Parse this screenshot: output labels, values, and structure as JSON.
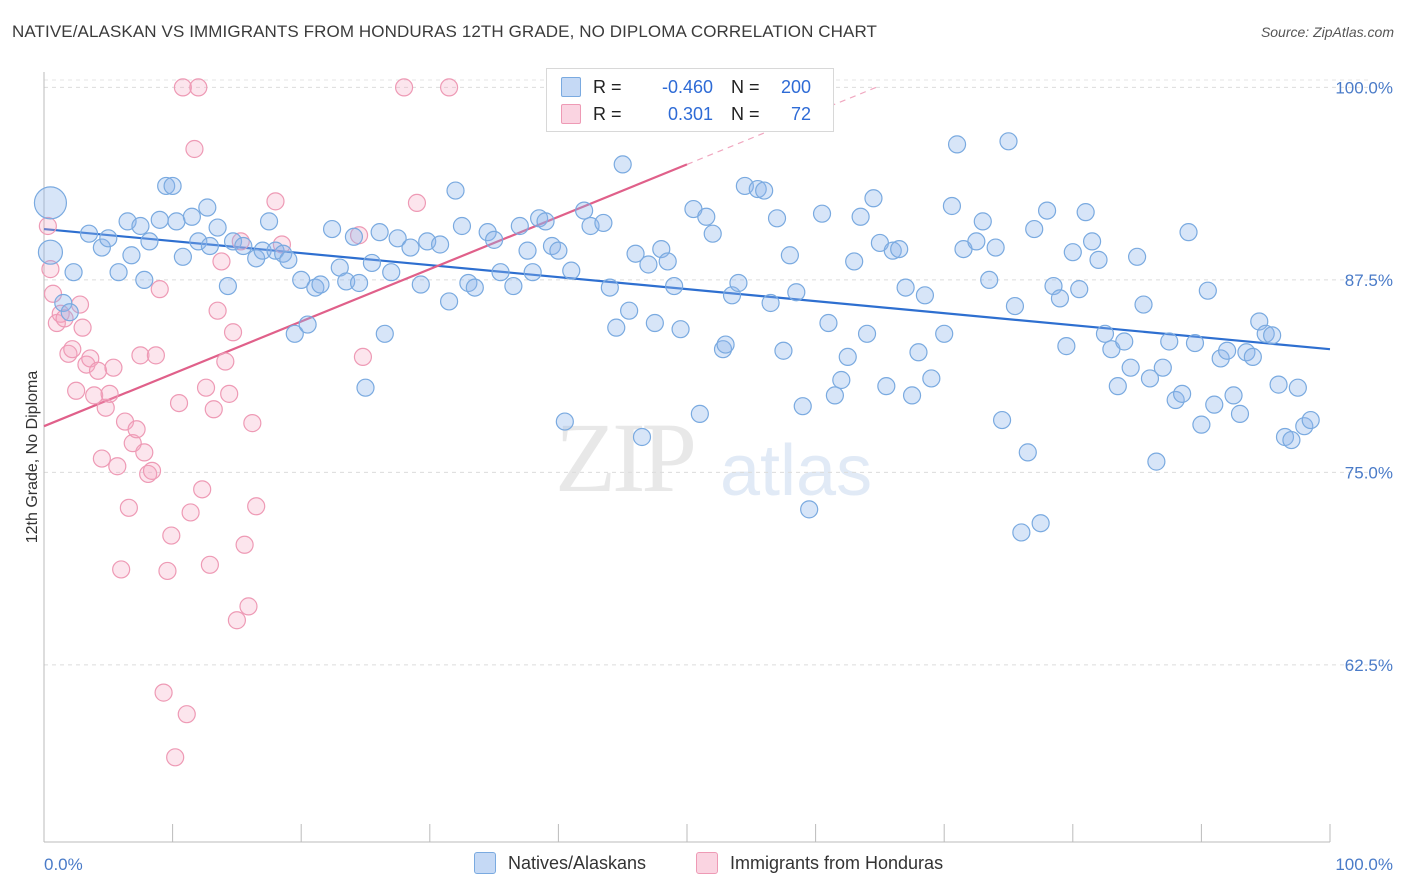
{
  "header": {
    "title": "NATIVE/ALASKAN VS IMMIGRANTS FROM HONDURAS 12TH GRADE, NO DIPLOMA CORRELATION CHART",
    "source": "Source: ZipAtlas.com"
  },
  "watermark": {
    "zip": "ZIP",
    "atlas": "atlas"
  },
  "legend": {
    "rows": [
      {
        "r_label": "R =",
        "r_value": "-0.460",
        "n_label": "N =",
        "n_value": "200"
      },
      {
        "r_label": "R =",
        "r_value": "0.301",
        "n_label": "N =",
        "n_value": "72"
      }
    ]
  },
  "colors": {
    "blue": "#7aaae0",
    "blue_fill": "rgba(140,180,235,0.35)",
    "blue_line": "#2e6fd0",
    "pink": "#ee9ab5",
    "pink_fill": "rgba(245,170,195,0.30)",
    "pink_line": "#e0608a"
  },
  "chart_data": {
    "type": "scatter",
    "title": "NATIVE/ALASKAN VS IMMIGRANTS FROM HONDURAS 12TH GRADE, NO DIPLOMA CORRELATION CHART",
    "xlabel": "",
    "ylabel": "12th Grade, No Diploma",
    "xlim": [
      0,
      100
    ],
    "ylim": [
      51,
      101
    ],
    "x_tick_labels": [
      "0.0%",
      "100.0%"
    ],
    "y_ticks": [
      62.5,
      75.0,
      87.5,
      100.0
    ],
    "y_tick_labels": [
      "62.5%",
      "75.0%",
      "87.5%",
      "100.0%"
    ],
    "grid": true,
    "legend_position": "bottom",
    "series": [
      {
        "name": "Natives/Alaskans",
        "trend": {
          "x": [
            0,
            100
          ],
          "y": [
            90.8,
            83.0
          ]
        },
        "points": [
          [
            0.5,
            92.5
          ],
          [
            0.5,
            89.3
          ],
          [
            1.5,
            86.0
          ],
          [
            2.0,
            85.4
          ],
          [
            2.3,
            88.0
          ],
          [
            3.5,
            90.5
          ],
          [
            4.5,
            89.6
          ],
          [
            5.0,
            90.2
          ],
          [
            5.8,
            88.0
          ],
          [
            6.5,
            91.3
          ],
          [
            6.8,
            89.1
          ],
          [
            7.5,
            91.0
          ],
          [
            7.8,
            87.5
          ],
          [
            8.2,
            90.0
          ],
          [
            9.0,
            91.4
          ],
          [
            9.5,
            93.6
          ],
          [
            10.0,
            93.6
          ],
          [
            10.3,
            91.3
          ],
          [
            10.8,
            89.0
          ],
          [
            11.5,
            91.6
          ],
          [
            12.0,
            90.0
          ],
          [
            12.7,
            92.2
          ],
          [
            12.9,
            89.7
          ],
          [
            13.5,
            90.9
          ],
          [
            14.3,
            87.1
          ],
          [
            14.7,
            90.0
          ],
          [
            15.5,
            89.7
          ],
          [
            16.5,
            88.9
          ],
          [
            17.0,
            89.4
          ],
          [
            17.5,
            91.3
          ],
          [
            18.0,
            89.4
          ],
          [
            18.6,
            89.2
          ],
          [
            19.0,
            88.8
          ],
          [
            19.5,
            84.0
          ],
          [
            20.0,
            87.5
          ],
          [
            20.5,
            84.6
          ],
          [
            21.1,
            87.0
          ],
          [
            21.5,
            87.2
          ],
          [
            22.4,
            90.8
          ],
          [
            23.0,
            88.3
          ],
          [
            23.5,
            87.4
          ],
          [
            24.1,
            90.3
          ],
          [
            24.5,
            87.3
          ],
          [
            25.0,
            80.5
          ],
          [
            25.5,
            88.6
          ],
          [
            26.1,
            90.6
          ],
          [
            26.5,
            84.0
          ],
          [
            27.0,
            88.0
          ],
          [
            27.5,
            90.2
          ],
          [
            28.5,
            89.6
          ],
          [
            29.3,
            87.2
          ],
          [
            29.8,
            90.0
          ],
          [
            30.8,
            89.8
          ],
          [
            31.5,
            86.1
          ],
          [
            32.0,
            93.3
          ],
          [
            32.5,
            91.0
          ],
          [
            33.0,
            87.3
          ],
          [
            33.5,
            87.0
          ],
          [
            34.5,
            90.6
          ],
          [
            35.0,
            90.1
          ],
          [
            35.5,
            88.0
          ],
          [
            36.5,
            87.1
          ],
          [
            37.0,
            91.0
          ],
          [
            37.6,
            89.4
          ],
          [
            38.0,
            88.0
          ],
          [
            38.5,
            91.5
          ],
          [
            39.0,
            91.3
          ],
          [
            39.5,
            89.7
          ],
          [
            40.0,
            89.4
          ],
          [
            40.5,
            78.3
          ],
          [
            41.0,
            88.1
          ],
          [
            42.0,
            92.0
          ],
          [
            42.5,
            91.0
          ],
          [
            43.5,
            91.2
          ],
          [
            44.0,
            87.0
          ],
          [
            44.5,
            84.4
          ],
          [
            45.0,
            95.0
          ],
          [
            45.5,
            85.5
          ],
          [
            46.0,
            89.2
          ],
          [
            46.5,
            77.3
          ],
          [
            47.0,
            88.5
          ],
          [
            47.5,
            84.7
          ],
          [
            48.0,
            89.5
          ],
          [
            48.5,
            88.7
          ],
          [
            49.0,
            87.1
          ],
          [
            49.5,
            84.3
          ],
          [
            50.5,
            92.1
          ],
          [
            51.0,
            78.8
          ],
          [
            51.5,
            91.6
          ],
          [
            52.0,
            90.5
          ],
          [
            52.8,
            83.0
          ],
          [
            53.0,
            83.3
          ],
          [
            53.5,
            86.5
          ],
          [
            54.0,
            87.3
          ],
          [
            54.5,
            93.6
          ],
          [
            55.5,
            93.4
          ],
          [
            56.0,
            93.3
          ],
          [
            56.5,
            86.0
          ],
          [
            57.0,
            91.5
          ],
          [
            57.5,
            82.9
          ],
          [
            58.0,
            89.1
          ],
          [
            58.5,
            86.7
          ],
          [
            59.0,
            79.3
          ],
          [
            59.5,
            72.6
          ],
          [
            60.0,
            99.0
          ],
          [
            60.5,
            91.8
          ],
          [
            61.0,
            84.7
          ],
          [
            61.5,
            80.0
          ],
          [
            62.0,
            81.0
          ],
          [
            62.5,
            82.5
          ],
          [
            63.0,
            88.7
          ],
          [
            63.5,
            91.6
          ],
          [
            64.0,
            84.0
          ],
          [
            64.5,
            92.8
          ],
          [
            65.0,
            89.9
          ],
          [
            65.5,
            80.6
          ],
          [
            66.0,
            89.4
          ],
          [
            66.5,
            89.5
          ],
          [
            67.0,
            87.0
          ],
          [
            67.5,
            80.0
          ],
          [
            68.0,
            82.8
          ],
          [
            68.5,
            86.5
          ],
          [
            69.0,
            81.1
          ],
          [
            70.0,
            84.0
          ],
          [
            70.6,
            92.3
          ],
          [
            71.0,
            96.3
          ],
          [
            71.5,
            89.5
          ],
          [
            72.5,
            90.0
          ],
          [
            73.0,
            91.3
          ],
          [
            73.5,
            87.5
          ],
          [
            74.0,
            89.6
          ],
          [
            74.5,
            78.4
          ],
          [
            75.0,
            96.5
          ],
          [
            75.5,
            85.8
          ],
          [
            76.0,
            71.1
          ],
          [
            76.5,
            76.3
          ],
          [
            77.0,
            90.8
          ],
          [
            77.5,
            71.7
          ],
          [
            78.0,
            92.0
          ],
          [
            78.5,
            87.1
          ],
          [
            79.0,
            86.3
          ],
          [
            79.5,
            83.2
          ],
          [
            80.0,
            89.3
          ],
          [
            80.5,
            86.9
          ],
          [
            81.0,
            91.9
          ],
          [
            81.5,
            90.0
          ],
          [
            82.0,
            88.8
          ],
          [
            82.5,
            84.0
          ],
          [
            83.0,
            83.0
          ],
          [
            83.5,
            80.6
          ],
          [
            84.0,
            83.5
          ],
          [
            84.5,
            81.8
          ],
          [
            85.0,
            89.0
          ],
          [
            85.5,
            85.9
          ],
          [
            86.0,
            81.1
          ],
          [
            86.5,
            75.7
          ],
          [
            87.0,
            81.8
          ],
          [
            87.5,
            83.5
          ],
          [
            88.0,
            79.7
          ],
          [
            88.5,
            80.1
          ],
          [
            89.0,
            90.6
          ],
          [
            89.5,
            83.4
          ],
          [
            90.0,
            78.1
          ],
          [
            90.5,
            86.8
          ],
          [
            91.0,
            79.4
          ],
          [
            91.5,
            82.4
          ],
          [
            92.0,
            82.9
          ],
          [
            92.5,
            80.0
          ],
          [
            93.0,
            78.8
          ],
          [
            93.5,
            82.8
          ],
          [
            94.0,
            82.5
          ],
          [
            94.5,
            84.8
          ],
          [
            95.0,
            84.0
          ],
          [
            95.5,
            83.9
          ],
          [
            96.0,
            80.7
          ],
          [
            96.5,
            77.3
          ],
          [
            97.0,
            77.1
          ],
          [
            97.5,
            80.5
          ],
          [
            98.0,
            78.0
          ],
          [
            98.5,
            78.4
          ]
        ]
      },
      {
        "name": "Immigrants from Honduras",
        "trend": {
          "x": [
            0,
            50
          ],
          "y": [
            78.0,
            95.0
          ]
        },
        "points": [
          [
            0.3,
            91.0
          ],
          [
            0.5,
            88.2
          ],
          [
            0.7,
            86.6
          ],
          [
            1.0,
            84.7
          ],
          [
            1.3,
            85.3
          ],
          [
            1.6,
            85.0
          ],
          [
            1.9,
            82.7
          ],
          [
            2.2,
            83.0
          ],
          [
            2.5,
            80.3
          ],
          [
            2.8,
            85.9
          ],
          [
            3.0,
            84.4
          ],
          [
            3.3,
            82.0
          ],
          [
            3.6,
            82.4
          ],
          [
            3.9,
            80.0
          ],
          [
            4.2,
            81.6
          ],
          [
            4.5,
            75.9
          ],
          [
            4.8,
            79.2
          ],
          [
            5.1,
            80.1
          ],
          [
            5.4,
            81.8
          ],
          [
            5.7,
            75.4
          ],
          [
            6.0,
            68.7
          ],
          [
            6.3,
            78.3
          ],
          [
            6.6,
            72.7
          ],
          [
            6.9,
            76.9
          ],
          [
            7.2,
            77.8
          ],
          [
            7.5,
            82.6
          ],
          [
            7.8,
            76.3
          ],
          [
            8.1,
            74.9
          ],
          [
            8.4,
            75.1
          ],
          [
            8.7,
            82.6
          ],
          [
            9.0,
            86.9
          ],
          [
            9.3,
            60.7
          ],
          [
            9.6,
            68.6
          ],
          [
            9.9,
            70.9
          ],
          [
            10.2,
            56.5
          ],
          [
            10.5,
            79.5
          ],
          [
            10.8,
            100.0
          ],
          [
            11.1,
            59.3
          ],
          [
            11.4,
            72.4
          ],
          [
            11.7,
            96.0
          ],
          [
            12.0,
            100.0
          ],
          [
            12.3,
            73.9
          ],
          [
            12.6,
            80.5
          ],
          [
            12.9,
            69.0
          ],
          [
            13.2,
            79.1
          ],
          [
            13.5,
            85.5
          ],
          [
            13.8,
            88.7
          ],
          [
            14.1,
            82.2
          ],
          [
            14.4,
            80.1
          ],
          [
            14.7,
            84.1
          ],
          [
            15.0,
            65.4
          ],
          [
            15.3,
            90.0
          ],
          [
            15.6,
            70.3
          ],
          [
            15.9,
            66.3
          ],
          [
            16.2,
            78.2
          ],
          [
            16.5,
            72.8
          ],
          [
            18.0,
            92.6
          ],
          [
            18.5,
            89.8
          ],
          [
            24.5,
            90.4
          ],
          [
            24.8,
            82.5
          ],
          [
            28.0,
            100.0
          ],
          [
            29.0,
            92.5
          ],
          [
            31.5,
            100.0
          ],
          [
            40.5,
            100.0
          ]
        ]
      }
    ]
  },
  "bottom_legend": [
    {
      "label": "Natives/Alaskans"
    },
    {
      "label": "Immigrants from Honduras"
    }
  ]
}
